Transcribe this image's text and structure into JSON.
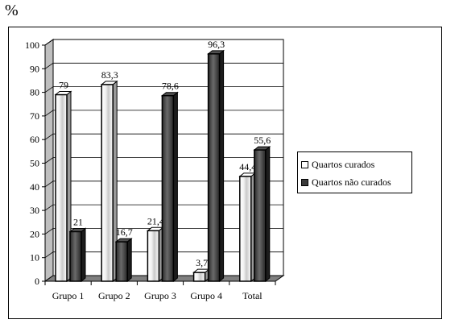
{
  "chart_data": {
    "type": "bar",
    "unit_label": "%",
    "categories": [
      "Grupo 1",
      "Grupo 2",
      "Grupo 3",
      "Grupo 4",
      "Total"
    ],
    "series": [
      {
        "name": "Quartos curados",
        "values": [
          79,
          83.3,
          21.4,
          3.7,
          44.4
        ],
        "labels": [
          "79",
          "83,3",
          "21,4",
          "3,7",
          "44,4"
        ],
        "color": "#ffffff"
      },
      {
        "name": "Quartos não curados",
        "values": [
          21,
          16.7,
          78.6,
          96.3,
          55.6
        ],
        "labels": [
          "21",
          "16,7",
          "78,6",
          "96,3",
          "55,6"
        ],
        "color": "#3a3a3a"
      }
    ],
    "ylim": [
      0,
      100
    ],
    "yticks": [
      0,
      10,
      20,
      30,
      40,
      50,
      60,
      70,
      80,
      90,
      100
    ],
    "grid": true,
    "style": "3d",
    "legend_position": "right"
  }
}
